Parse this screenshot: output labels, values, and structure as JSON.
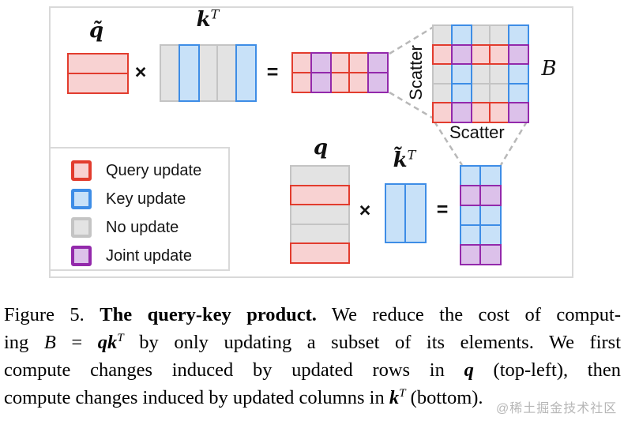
{
  "figure": {
    "labels": {
      "q_tilde": [
        {
          "t": "q̃",
          "bi": true
        }
      ],
      "kT": [
        {
          "t": "k",
          "bi": true
        },
        {
          "t": "T",
          "i": true,
          "sup": true
        }
      ],
      "q": [
        {
          "t": "q",
          "bi": true
        }
      ],
      "kT_tilde": [
        {
          "t": "k̃",
          "bi": true
        },
        {
          "t": "T",
          "i": true,
          "sup": true
        }
      ],
      "B": [
        {
          "t": "B",
          "i": true
        }
      ]
    },
    "operators": {
      "times": "×",
      "equals": "="
    },
    "scatter_left": "Scatter",
    "scatter_bottom": "Scatter"
  },
  "colors": {
    "q": {
      "fill": "#f8d2d2",
      "border": "#e23c2e"
    },
    "k": {
      "fill": "#c8e1f8",
      "border": "#3e8de6"
    },
    "n": {
      "fill": "#e3e3e3",
      "border": "#c4c4c4"
    },
    "j": {
      "fill": "#dcc1ea",
      "border": "#9329ab"
    },
    "dash": "#b8b8b8",
    "frame": "#d9d9d9"
  },
  "matrices": {
    "q_tilde": [
      [
        "q"
      ],
      [
        "q"
      ]
    ],
    "kT_top": [
      [
        "n",
        "k",
        "n",
        "n",
        "k"
      ]
    ],
    "result_top": [
      [
        "q",
        "j",
        "q",
        "q",
        "j"
      ],
      [
        "q",
        "j",
        "q",
        "q",
        "j"
      ]
    ],
    "B": [
      [
        "n",
        "k",
        "n",
        "n",
        "k"
      ],
      [
        "q",
        "j",
        "q",
        "q",
        "j"
      ],
      [
        "n",
        "k",
        "n",
        "n",
        "k"
      ],
      [
        "n",
        "k",
        "n",
        "n",
        "k"
      ],
      [
        "q",
        "j",
        "q",
        "q",
        "j"
      ]
    ],
    "q_bottom": [
      [
        "n"
      ],
      [
        "q"
      ],
      [
        "n"
      ],
      [
        "n"
      ],
      [
        "q"
      ]
    ],
    "kT_tilde": [
      [
        "k",
        "k"
      ]
    ],
    "result_bottom": [
      [
        "k",
        "k"
      ],
      [
        "j",
        "j"
      ],
      [
        "k",
        "k"
      ],
      [
        "k",
        "k"
      ],
      [
        "j",
        "j"
      ]
    ]
  },
  "legend": {
    "items": [
      {
        "key": "q",
        "label": "Query update"
      },
      {
        "key": "k",
        "label": "Key update"
      },
      {
        "key": "n",
        "label": "No update"
      },
      {
        "key": "j",
        "label": "Joint update"
      }
    ]
  },
  "caption": {
    "lines": [
      [
        {
          "t": "Figure 5. "
        },
        {
          "t": "The query-key product.",
          "b": true
        },
        {
          "t": " We reduce the cost of comput-"
        }
      ],
      [
        {
          "t": "ing "
        },
        {
          "t": "B",
          "i": true
        },
        {
          "t": " = "
        },
        {
          "t": "qk",
          "bi": true
        },
        {
          "t": "T",
          "i": true,
          "sup": true
        },
        {
          "t": " by only updating a subset of its elements. We first"
        }
      ],
      [
        {
          "t": "compute changes induced by updated rows in "
        },
        {
          "t": "q",
          "bi": true
        },
        {
          "t": " (top-left), then"
        }
      ],
      [
        {
          "t": "compute changes induced by updated columns in "
        },
        {
          "t": "k",
          "bi": true
        },
        {
          "t": "T",
          "i": true,
          "sup": true
        },
        {
          "t": " (bottom)."
        }
      ]
    ]
  },
  "watermark": "@稀土掘金技术社区"
}
